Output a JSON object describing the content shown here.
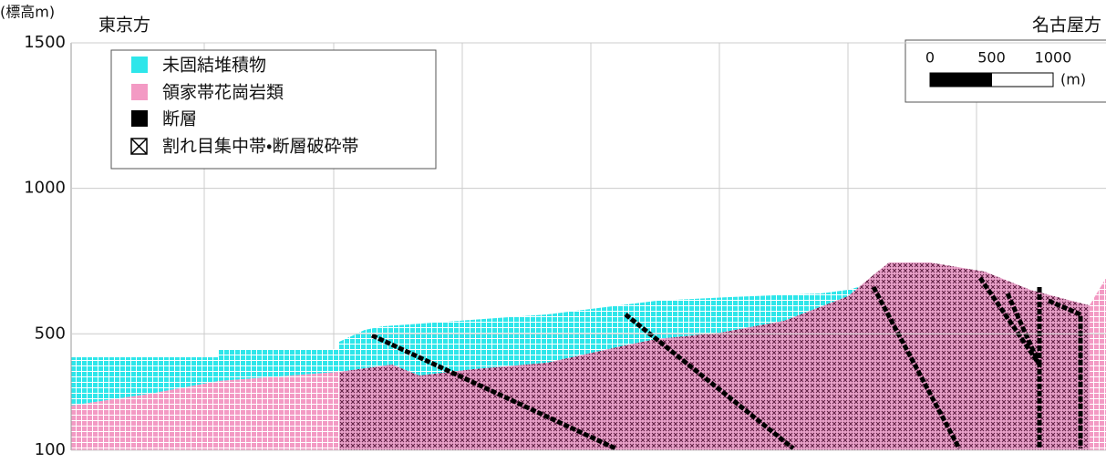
{
  "axis": {
    "label": "(標高m)",
    "ticks": [
      100,
      500,
      1000,
      1500
    ],
    "lim": [
      100,
      1500
    ]
  },
  "directions": {
    "left": "東京方",
    "right": "名古屋方"
  },
  "legend": [
    "未固結堆積物",
    "領家帯花崗岩類",
    "断層",
    "割れ目集中帯・断層破砕帯"
  ],
  "scale_bar": {
    "ticks": [
      0,
      500,
      1000
    ],
    "unit": "(m)"
  }
}
